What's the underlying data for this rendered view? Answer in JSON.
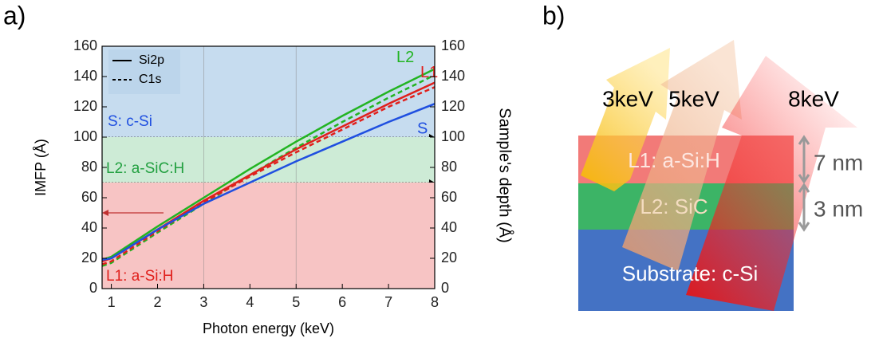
{
  "chart_data": {
    "type": "line",
    "panel_label": "a)",
    "x_label": "Photon energy (keV)",
    "y_label": "IMFP (Å)",
    "y2_label": "Sample's depth (Å)",
    "x": [
      0.8,
      1,
      2,
      3,
      4,
      5,
      6,
      7,
      8
    ],
    "legend": [
      "Si2p",
      "C1s"
    ],
    "series": [
      {
        "name": "L2",
        "color": "#22b422",
        "values": [
          19,
          21,
          41,
          60,
          79,
          97,
          114,
          130,
          145
        ],
        "c1s_values": [
          15,
          17,
          37,
          56,
          75,
          93,
          110,
          126,
          141
        ]
      },
      {
        "name": "L1",
        "color": "#e0201c",
        "values": [
          18,
          20,
          39,
          58,
          75,
          92,
          107,
          122,
          136
        ],
        "c1s_values": [
          16,
          18,
          38,
          57,
          74,
          90,
          105,
          120,
          133
        ]
      },
      {
        "name": "S",
        "color": "#1f4fe0",
        "values": [
          19,
          20,
          39,
          56,
          70,
          84,
          97,
          110,
          122
        ]
      }
    ],
    "regions": [
      {
        "label": "S: c-Si",
        "range": [
          100,
          160
        ],
        "fill": "#c6dcef",
        "color": "#1f4fe0"
      },
      {
        "label": "L2: a-SiC:H",
        "range": [
          70,
          100
        ],
        "fill": "#cdebd6",
        "color": "#22a040"
      },
      {
        "label": "L1: a-Si:H",
        "range": [
          0,
          70
        ],
        "fill": "#f7c4c4",
        "color": "#e0201c"
      }
    ],
    "xlim": [
      0.8,
      8
    ],
    "xticks": [
      1,
      2,
      3,
      4,
      5,
      6,
      7,
      8
    ],
    "ylim": [
      0,
      160
    ],
    "yticks": [
      0,
      20,
      40,
      60,
      80,
      100,
      120,
      140,
      160
    ],
    "y2lim": [
      0,
      160
    ],
    "y2ticks": [
      0,
      20,
      40,
      60,
      80,
      100,
      120,
      140,
      160
    ],
    "vlines": [
      3,
      5
    ]
  },
  "diagram": {
    "panel_label": "b)",
    "beams": [
      "3keV",
      "5keV",
      "8keV"
    ],
    "layers": [
      "L1: a-Si:H",
      "L2: SiC",
      "Substrate: c-Si"
    ],
    "thicknesses": [
      "7 nm",
      "3 nm"
    ]
  }
}
